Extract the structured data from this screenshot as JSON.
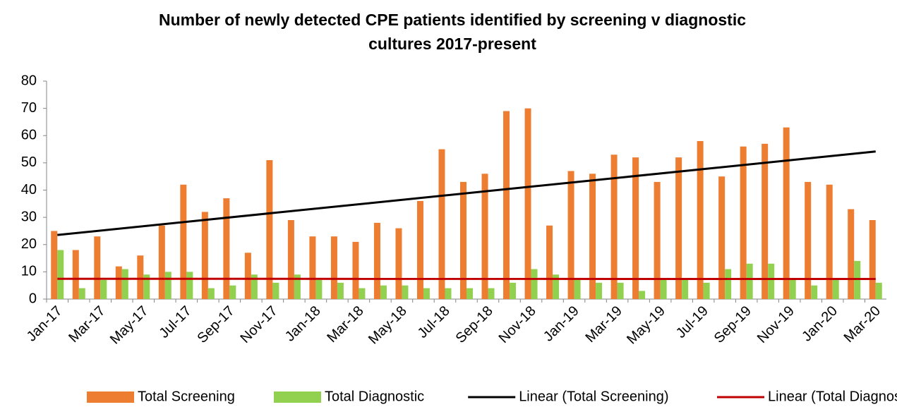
{
  "chart_data": {
    "type": "bar",
    "title": [
      "Number of newly detected CPE patients identified by screening v diagnostic",
      "cultures 2017-present"
    ],
    "categories": [
      "Jan-17",
      null,
      "Mar-17",
      null,
      "May-17",
      null,
      "Jul-17",
      null,
      "Sep-17",
      null,
      "Nov-17",
      null,
      "Jan-18",
      null,
      "Mar-18",
      null,
      "May-18",
      null,
      "Jul-18",
      null,
      "Sep-18",
      null,
      "Nov-18",
      null,
      "Jan-19",
      null,
      "Mar-19",
      null,
      "May-19",
      null,
      "Jul-19",
      null,
      "Sep-19",
      null,
      "Nov-19",
      null,
      "Jan-20",
      null,
      "Mar-20"
    ],
    "series": [
      {
        "name": "Total Screening",
        "color": "#ed7d31",
        "values": [
          25,
          18,
          23,
          12,
          16,
          27,
          42,
          32,
          37,
          17,
          51,
          29,
          23,
          23,
          21,
          28,
          26,
          36,
          55,
          43,
          46,
          69,
          70,
          27,
          47,
          46,
          53,
          52,
          43,
          52,
          58,
          45,
          56,
          57,
          63,
          43,
          42,
          33,
          29
        ],
        "trendline": {
          "type": "linear",
          "name": "Linear (Total Screening)",
          "color": "#000000"
        }
      },
      {
        "name": "Total Diagnostic",
        "color": "#92d050",
        "values": [
          18,
          4,
          7,
          11,
          9,
          10,
          10,
          4,
          5,
          9,
          6,
          9,
          7,
          6,
          4,
          5,
          5,
          4,
          4,
          4,
          4,
          6,
          11,
          9,
          7,
          6,
          6,
          3,
          7,
          7,
          6,
          11,
          13,
          13,
          7,
          5,
          7,
          14,
          6
        ],
        "trendline": {
          "type": "linear",
          "name": "Linear (Total Diagnostic)",
          "color": "#c00000"
        }
      }
    ],
    "ylim": [
      0,
      80
    ],
    "yticks": [
      0,
      10,
      20,
      30,
      40,
      50,
      60,
      70,
      80
    ],
    "grid": false,
    "legend": "bottom"
  }
}
